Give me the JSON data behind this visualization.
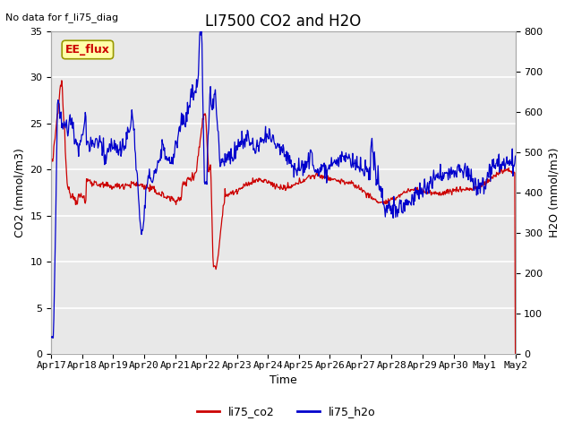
{
  "title": "LI7500 CO2 and H2O",
  "top_left_text": "No data for f_li75_diag",
  "xlabel": "Time",
  "ylabel_left": "CO2 (mmol/m3)",
  "ylabel_right": "H2O (mmol/m3)",
  "ylim_left": [
    0,
    35
  ],
  "ylim_right": [
    0,
    800
  ],
  "legend_labels": [
    "li75_co2",
    "li75_h2o"
  ],
  "legend_colors": [
    "#cc0000",
    "#0000cc"
  ],
  "box_label": "EE_flux",
  "box_facecolor": "#ffffaa",
  "box_edgecolor": "#999900",
  "background_color": "#ffffff",
  "plot_bg_color": "#e8e8e8",
  "grid_color": "#ffffff",
  "xtick_labels": [
    "Apr 17",
    "Apr 18",
    "Apr 19",
    "Apr 20",
    "Apr 21",
    "Apr 22",
    "Apr 23",
    "Apr 24",
    "Apr 25",
    "Apr 26",
    "Apr 27",
    "Apr 28",
    "Apr 29",
    "Apr 30",
    "May 1",
    "May 2"
  ],
  "title_fontsize": 12,
  "axis_fontsize": 9,
  "tick_fontsize": 8
}
